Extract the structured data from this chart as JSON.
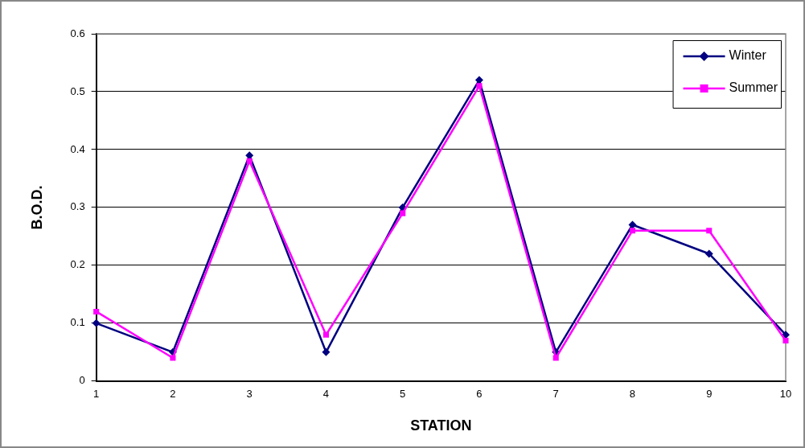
{
  "chart_data": {
    "type": "line",
    "xlabel": "STATION",
    "ylabel": "B.O.D.",
    "categories": [
      "1",
      "2",
      "3",
      "4",
      "5",
      "6",
      "7",
      "8",
      "9",
      "10"
    ],
    "series": [
      {
        "name": "Winter",
        "color": "#000080",
        "marker": "diamond",
        "values": [
          0.1,
          0.05,
          0.39,
          0.05,
          0.3,
          0.52,
          0.05,
          0.27,
          0.22,
          0.08
        ]
      },
      {
        "name": "Summer",
        "color": "#ff00ff",
        "marker": "square",
        "values": [
          0.12,
          0.04,
          0.38,
          0.08,
          0.29,
          0.51,
          0.04,
          0.26,
          0.26,
          0.07
        ]
      }
    ],
    "ylim": [
      0,
      0.6
    ],
    "yticks": [
      0,
      0.1,
      0.2,
      0.3,
      0.4,
      0.5,
      0.6
    ],
    "grid": "y",
    "legend": "top right",
    "line_style": "solid"
  }
}
